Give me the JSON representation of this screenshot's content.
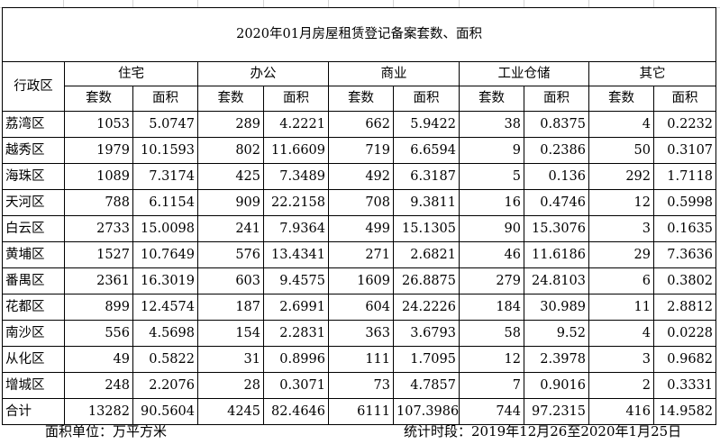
{
  "title": "2020年01月房屋租赁登记备案套数、面积",
  "district_header": "行政区",
  "groups": [
    "住宅",
    "办公",
    "商业",
    "工业仓储",
    "其它"
  ],
  "sub_headers": [
    "套数",
    "面积"
  ],
  "rows": [
    {
      "district": "荔湾区",
      "values": [
        "1053",
        "5.0747",
        "289",
        "4.2221",
        "662",
        "5.9422",
        "38",
        "0.8375",
        "4",
        "0.2232"
      ]
    },
    {
      "district": "越秀区",
      "values": [
        "1979",
        "10.1593",
        "802",
        "11.6609",
        "719",
        "6.6594",
        "9",
        "0.2386",
        "50",
        "0.3107"
      ]
    },
    {
      "district": "海珠区",
      "values": [
        "1089",
        "7.3174",
        "425",
        "7.3489",
        "492",
        "6.3187",
        "5",
        "0.136",
        "292",
        "1.7118"
      ]
    },
    {
      "district": "天河区",
      "values": [
        "788",
        "6.1154",
        "909",
        "22.2158",
        "708",
        "9.3811",
        "16",
        "0.4746",
        "12",
        "0.5998"
      ]
    },
    {
      "district": "白云区",
      "values": [
        "2733",
        "15.0098",
        "241",
        "7.9364",
        "499",
        "15.1305",
        "90",
        "15.3076",
        "3",
        "0.1635"
      ]
    },
    {
      "district": "黄埔区",
      "values": [
        "1527",
        "10.7649",
        "576",
        "13.4341",
        "271",
        "2.6821",
        "46",
        "11.6186",
        "29",
        "7.3636"
      ]
    },
    {
      "district": "番禺区",
      "values": [
        "2361",
        "16.3019",
        "603",
        "9.4575",
        "1609",
        "26.8875",
        "279",
        "24.8103",
        "6",
        "0.3802"
      ]
    },
    {
      "district": "花都区",
      "values": [
        "899",
        "12.4574",
        "187",
        "2.6991",
        "604",
        "24.2226",
        "184",
        "30.989",
        "11",
        "2.8812"
      ]
    },
    {
      "district": "南沙区",
      "values": [
        "556",
        "4.5698",
        "154",
        "2.2831",
        "363",
        "3.6793",
        "58",
        "9.52",
        "4",
        "0.0228"
      ]
    },
    {
      "district": "从化区",
      "values": [
        "49",
        "0.5822",
        "31",
        "0.8996",
        "111",
        "1.7095",
        "12",
        "2.3978",
        "3",
        "0.9682"
      ]
    },
    {
      "district": "增城区",
      "values": [
        "248",
        "2.2076",
        "28",
        "0.3071",
        "73",
        "4.7857",
        "7",
        "0.9016",
        "2",
        "0.3331"
      ]
    }
  ],
  "total": {
    "district": "合计",
    "values": [
      "13282",
      "90.5604",
      "4245",
      "82.4646",
      "6111",
      "107.3986",
      "744",
      "97.2315",
      "416",
      "14.9582"
    ]
  },
  "footer_left": "面积单位：万平方米",
  "footer_right": "统计时段：2019年12月26至2020年1月25日"
}
